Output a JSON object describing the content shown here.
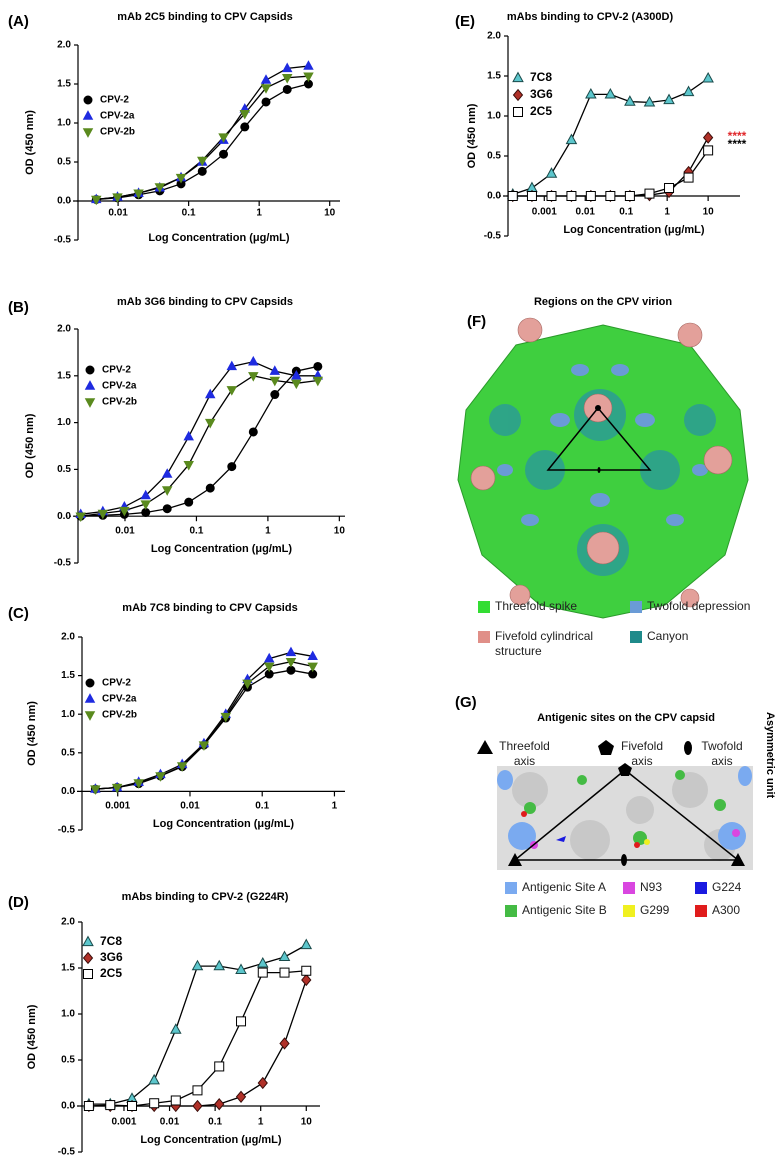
{
  "chart_data": [
    {
      "type": "line",
      "label": "(A)",
      "title": "mAb 2C5 binding to CPV Capsids",
      "x_label": "Log Concentration (μg/mL)",
      "y_label": "OD (450 nm)",
      "xscale": "log",
      "x": [
        0.0049,
        0.0098,
        0.0195,
        0.039,
        0.078,
        0.156,
        0.3125,
        0.625,
        1.25,
        2.5,
        5
      ],
      "xlim": [
        0.0027,
        14
      ],
      "xticks": [
        0.01,
        0.1,
        1,
        10
      ],
      "ylim": [
        -0.5,
        2.0
      ],
      "yticks": [
        {
          "value": -0.5,
          "label": "-0.5"
        },
        {
          "value": 0,
          "label": "0.0"
        },
        {
          "value": 0.5,
          "label": "0.5"
        },
        {
          "value": 1,
          "label": "1.0"
        },
        {
          "value": 1.5,
          "label": "1.5"
        },
        {
          "value": 2,
          "label": "2.0"
        }
      ],
      "legend": "upper left",
      "line_color": "#000000",
      "series": [
        {
          "name": "CPV-2",
          "color": "#000000",
          "marker": "circle",
          "values": [
            0.02,
            0.04,
            0.08,
            0.13,
            0.22,
            0.38,
            0.6,
            0.95,
            1.27,
            1.43,
            1.5
          ]
        },
        {
          "name": "CPV-2a",
          "color": "#1f2be0",
          "marker": "triangle",
          "values": [
            0.02,
            0.05,
            0.1,
            0.17,
            0.3,
            0.5,
            0.78,
            1.18,
            1.55,
            1.7,
            1.73
          ]
        },
        {
          "name": "CPV-2b",
          "color": "#5a8a1e",
          "marker": "triangle-down",
          "values": [
            0.02,
            0.05,
            0.1,
            0.18,
            0.3,
            0.52,
            0.82,
            1.12,
            1.45,
            1.58,
            1.6
          ]
        }
      ]
    },
    {
      "type": "line",
      "label": "(B)",
      "title": "mAb 3G6 binding to CPV Capsids",
      "x_label": "Log Concentration (μg/mL)",
      "y_label": "OD (450 nm)",
      "xscale": "log",
      "x": [
        0.0024,
        0.0049,
        0.0098,
        0.0195,
        0.039,
        0.078,
        0.156,
        0.3125,
        0.625,
        1.25,
        2.5,
        5
      ],
      "xlim": [
        0.0022,
        12
      ],
      "xticks": [
        0.01,
        0.1,
        1,
        10
      ],
      "ylim": [
        -0.5,
        2.0
      ],
      "yticks": [
        {
          "value": -0.5,
          "label": "-0.5"
        },
        {
          "value": 0,
          "label": "0.0"
        },
        {
          "value": 0.5,
          "label": "0.5"
        },
        {
          "value": 1,
          "label": "1.0"
        },
        {
          "value": 1.5,
          "label": "1.5"
        },
        {
          "value": 2,
          "label": "2.0"
        }
      ],
      "legend": "upper left",
      "line_color": "#000000",
      "series": [
        {
          "name": "CPV-2",
          "color": "#000000",
          "marker": "circle",
          "values": [
            0.0,
            0.01,
            0.02,
            0.04,
            0.08,
            0.15,
            0.3,
            0.53,
            0.9,
            1.3,
            1.55,
            1.6
          ]
        },
        {
          "name": "CPV-2a",
          "color": "#1f2be0",
          "marker": "triangle",
          "values": [
            0.02,
            0.05,
            0.1,
            0.22,
            0.45,
            0.85,
            1.3,
            1.6,
            1.65,
            1.55,
            1.5,
            1.5
          ]
        },
        {
          "name": "CPV-2b",
          "color": "#5a8a1e",
          "marker": "triangle-down",
          "values": [
            0.0,
            0.03,
            0.06,
            0.13,
            0.28,
            0.55,
            1.0,
            1.35,
            1.5,
            1.45,
            1.42,
            1.45
          ]
        }
      ]
    },
    {
      "type": "line",
      "label": "(C)",
      "title": "mAb 7C8 binding to CPV Capsids",
      "x_label": "Log Concentration (μg/mL)",
      "y_label": "OD (450 nm)",
      "xscale": "log",
      "x": [
        0.00049,
        0.00098,
        0.00195,
        0.0039,
        0.0078,
        0.0156,
        0.03125,
        0.0625,
        0.125,
        0.25,
        0.5
      ],
      "xlim": [
        0.00032,
        1.4
      ],
      "xticks": [
        0.001,
        0.01,
        0.1,
        1
      ],
      "ylim": [
        -0.5,
        2.0
      ],
      "yticks": [
        {
          "value": -0.5,
          "label": "-0.5"
        },
        {
          "value": 0,
          "label": "0.0"
        },
        {
          "value": 0.5,
          "label": "0.5"
        },
        {
          "value": 1,
          "label": "1.0"
        },
        {
          "value": 1.5,
          "label": "1.5"
        },
        {
          "value": 2,
          "label": "2.0"
        }
      ],
      "legend": "upper left",
      "line_color": "#000000",
      "series": [
        {
          "name": "CPV-2",
          "color": "#000000",
          "marker": "circle",
          "values": [
            0.03,
            0.05,
            0.1,
            0.2,
            0.32,
            0.6,
            0.95,
            1.35,
            1.52,
            1.57,
            1.52
          ]
        },
        {
          "name": "CPV-2a",
          "color": "#1f2be0",
          "marker": "triangle",
          "values": [
            0.03,
            0.05,
            0.12,
            0.22,
            0.35,
            0.62,
            1.0,
            1.45,
            1.72,
            1.8,
            1.75
          ]
        },
        {
          "name": "CPV-2b",
          "color": "#5a8a1e",
          "marker": "triangle-down",
          "values": [
            0.03,
            0.05,
            0.11,
            0.2,
            0.33,
            0.6,
            0.97,
            1.4,
            1.62,
            1.68,
            1.62
          ]
        }
      ]
    },
    {
      "type": "line",
      "label": "(D)",
      "title": "mAbs binding to CPV-2 (G224R)",
      "x_label": "Log Concentration (μg/mL)",
      "y_label": "OD (450 nm)",
      "xscale": "log",
      "x": [
        0.00017,
        0.0005,
        0.0015,
        0.0046,
        0.0137,
        0.041,
        0.123,
        0.37,
        1.11,
        3.33,
        10
      ],
      "xlim": [
        0.00012,
        20
      ],
      "xticks": [
        0.001,
        0.01,
        0.1,
        1,
        10
      ],
      "ylim": [
        -0.5,
        2.0
      ],
      "yticks": [
        {
          "value": -0.5,
          "label": "-0.5"
        },
        {
          "value": 0,
          "label": "0.0"
        },
        {
          "value": 0.5,
          "label": "0.5"
        },
        {
          "value": 1,
          "label": "1.0"
        },
        {
          "value": 1.5,
          "label": "1.5"
        },
        {
          "value": 2,
          "label": "2.0"
        }
      ],
      "legend": "upper left",
      "line_color": "#000000",
      "series": [
        {
          "name": "7C8",
          "color": "#5cc6cc",
          "edgecolor": "#1a4a4a",
          "marker": "triangle",
          "values": [
            0.02,
            0.02,
            0.08,
            0.28,
            0.83,
            1.52,
            1.52,
            1.48,
            1.55,
            1.62,
            1.75
          ]
        },
        {
          "name": "3G6",
          "color": "#b03028",
          "edgecolor": "#3a0d0a",
          "marker": "diamond",
          "values": [
            0.0,
            0.0,
            0.0,
            0.0,
            0.0,
            0.0,
            0.02,
            0.1,
            0.25,
            0.68,
            1.37
          ]
        },
        {
          "name": "2C5",
          "color": "#ffffff",
          "edgecolor": "#000000",
          "marker": "square",
          "values": [
            0.0,
            0.01,
            0.0,
            0.03,
            0.06,
            0.17,
            0.43,
            0.92,
            1.45,
            1.45,
            1.47
          ]
        }
      ]
    },
    {
      "type": "line",
      "label": "(E)",
      "title": "mAbs binding to CPV-2 (A300D)",
      "x_label": "Log Concentration (μg/mL)",
      "y_label": "OD (450 nm)",
      "xscale": "log",
      "x": [
        0.00017,
        0.0005,
        0.0015,
        0.0046,
        0.0137,
        0.041,
        0.123,
        0.37,
        1.11,
        3.33,
        10
      ],
      "xlim": [
        0.00013,
        60
      ],
      "xticks": [
        0.001,
        0.01,
        0.1,
        1,
        10
      ],
      "ylim": [
        -0.5,
        2.0
      ],
      "yticks": [
        {
          "value": -0.5,
          "label": "-0.5"
        },
        {
          "value": 0,
          "label": "0.0"
        },
        {
          "value": 0.5,
          "label": "0.5"
        },
        {
          "value": 1,
          "label": "1.0"
        },
        {
          "value": 1.5,
          "label": "1.5"
        },
        {
          "value": 2,
          "label": "2.0"
        }
      ],
      "legend": "upper left",
      "line_color": "#000000",
      "series": [
        {
          "name": "7C8",
          "color": "#5cc6cc",
          "edgecolor": "#1a4a4a",
          "marker": "triangle",
          "values": [
            0.02,
            0.1,
            0.28,
            0.7,
            1.27,
            1.27,
            1.18,
            1.17,
            1.2,
            1.3,
            1.47
          ]
        },
        {
          "name": "3G6",
          "color": "#b03028",
          "edgecolor": "#3a0d0a",
          "marker": "diamond",
          "values": [
            0.0,
            0.0,
            0.0,
            0.0,
            0.0,
            0.0,
            0.0,
            0.01,
            0.05,
            0.3,
            0.73
          ]
        },
        {
          "name": "2C5",
          "color": "#ffffff",
          "edgecolor": "#000000",
          "marker": "square",
          "values": [
            0.0,
            0.0,
            0.0,
            0.0,
            0.0,
            0.0,
            0.0,
            0.03,
            0.1,
            0.23,
            0.57
          ]
        }
      ],
      "annotations": [
        {
          "text": "****",
          "color": "#e0272a"
        },
        {
          "text": "****",
          "color": "#000000"
        }
      ]
    }
  ],
  "panel_f": {
    "label": "(F)",
    "title": "Regions on the CPV virion",
    "legend": [
      {
        "text": "Threefold spike",
        "color": "#33dd33"
      },
      {
        "text": "Twofold depression",
        "color": "#6a9bd6"
      },
      {
        "text": "Fivefold cylindrical structure",
        "color": "#e08f88"
      },
      {
        "text": "Canyon",
        "color": "#1f8a8a"
      }
    ]
  },
  "panel_g": {
    "label": "(G)",
    "title": "Antigenic sites on the CPV capsid",
    "axes": [
      "Threefold axis",
      "Fivefold axis",
      "Twofold axis"
    ],
    "side_label": "Asymmetric unit",
    "legend": [
      {
        "text": "Antigenic Site A",
        "color": "#7aaaf0"
      },
      {
        "text": "N93",
        "color": "#d946e0"
      },
      {
        "text": "G224",
        "color": "#1a1ae0"
      },
      {
        "text": "Antigenic Site B",
        "color": "#44bb44"
      },
      {
        "text": "G299",
        "color": "#f0f020"
      },
      {
        "text": "A300",
        "color": "#e01c1c"
      }
    ]
  }
}
